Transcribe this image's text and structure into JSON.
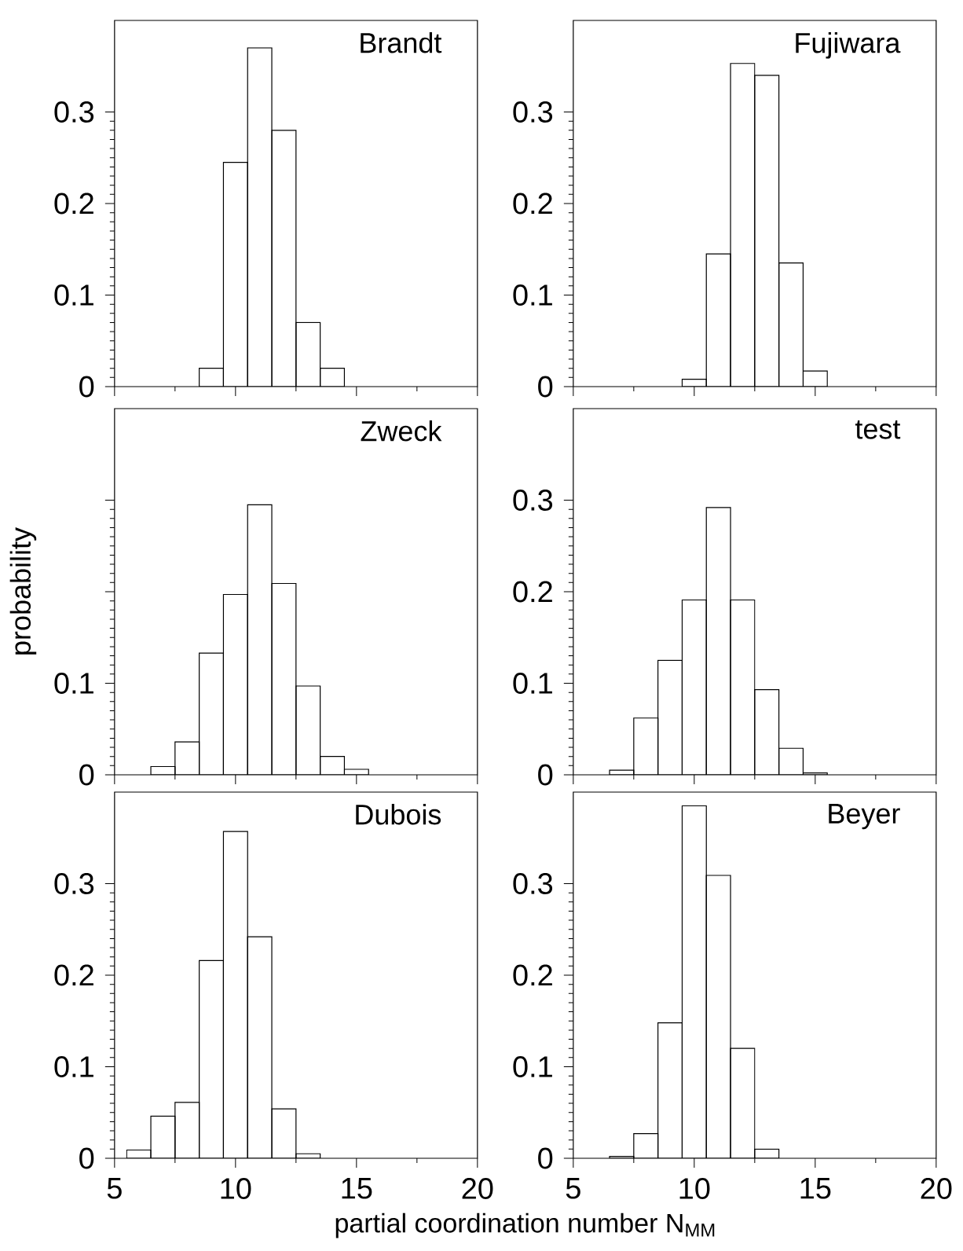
{
  "chart_data": [
    {
      "type": "histogram",
      "title": "Brandt",
      "bins": [
        8.5,
        9.5,
        10.5,
        11.5,
        12.5,
        13.5,
        14.5
      ],
      "values": [
        0.02,
        0.245,
        0.37,
        0.28,
        0.07,
        0.02
      ],
      "xlim": [
        5,
        20
      ],
      "xticks": [
        5,
        10,
        15,
        20
      ],
      "ylim": [
        0,
        0.4
      ],
      "yticks": [
        0,
        0.1,
        0.2,
        0.3
      ],
      "tick_labels": "y"
    },
    {
      "type": "histogram",
      "title": "Fujiwara",
      "bins": [
        9.5,
        10.5,
        11.5,
        12.5,
        13.5,
        14.5,
        15.5
      ],
      "values": [
        0.008,
        0.145,
        0.353,
        0.34,
        0.135,
        0.017
      ],
      "xlim": [
        5,
        20
      ],
      "xticks": [
        5,
        10,
        15,
        20
      ],
      "ylim": [
        0,
        0.4
      ],
      "yticks": [
        0,
        0.1,
        0.2,
        0.3
      ],
      "tick_labels": "y"
    },
    {
      "type": "histogram",
      "title": "Zweck",
      "ylabel": "probability",
      "bins": [
        6.5,
        7.5,
        8.5,
        9.5,
        10.5,
        11.5,
        12.5,
        13.5,
        14.5,
        15.5
      ],
      "values": [
        0.009,
        0.036,
        0.133,
        0.197,
        0.295,
        0.209,
        0.097,
        0.02,
        0.006
      ],
      "xlim": [
        5,
        20
      ],
      "xticks": [
        5,
        10,
        15,
        20
      ],
      "ylim": [
        0,
        0.4
      ],
      "yticks": [
        0,
        0.1,
        {
          "value": 0.2,
          "label": null
        },
        {
          "value": 0.3,
          "label": null
        }
      ],
      "tick_labels": "y"
    },
    {
      "type": "histogram",
      "title": "test",
      "bins": [
        6.5,
        7.5,
        8.5,
        9.5,
        10.5,
        11.5,
        12.5,
        13.5,
        14.5,
        15.5
      ],
      "values": [
        0.005,
        0.062,
        0.125,
        0.191,
        0.292,
        0.191,
        0.093,
        0.029,
        0.002
      ],
      "xlim": [
        5,
        20
      ],
      "xticks": [
        5,
        10,
        15,
        20
      ],
      "ylim": [
        0,
        0.4
      ],
      "yticks": [
        0,
        0.1,
        0.2,
        0.3
      ],
      "tick_labels": "y"
    },
    {
      "type": "histogram",
      "title": "Dubois",
      "xlabel": "partial coordination number N$_{MM}$",
      "bins": [
        5.5,
        6.5,
        7.5,
        8.5,
        9.5,
        10.5,
        11.5,
        12.5,
        13.5
      ],
      "values": [
        0.009,
        0.046,
        0.061,
        0.216,
        0.357,
        0.242,
        0.054,
        0.005
      ],
      "xlim": [
        5,
        20
      ],
      "xticks": [
        5,
        10,
        15,
        20
      ],
      "ylim": [
        0,
        0.4
      ],
      "yticks": [
        0,
        0.1,
        0.2,
        0.3
      ]
    },
    {
      "type": "histogram",
      "title": "Beyer",
      "bins": [
        6.5,
        7.5,
        8.5,
        9.5,
        10.5,
        11.5,
        12.5,
        13.5
      ],
      "values": [
        0.002,
        0.027,
        0.148,
        0.385,
        0.309,
        0.12,
        0.01
      ],
      "xlim": [
        5,
        20
      ],
      "xticks": [
        5,
        10,
        15,
        20
      ],
      "ylim": [
        0,
        0.4
      ],
      "yticks": [
        0,
        0.1,
        0.2,
        0.3
      ]
    }
  ]
}
